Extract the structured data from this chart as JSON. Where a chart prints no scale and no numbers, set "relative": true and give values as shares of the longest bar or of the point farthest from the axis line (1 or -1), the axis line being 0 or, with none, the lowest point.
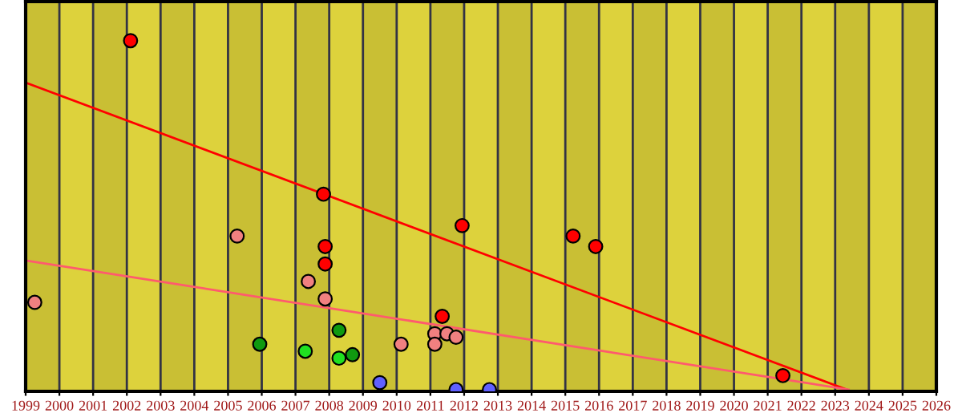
{
  "chart_data": {
    "type": "scatter",
    "relative": true,
    "xlim": [
      1999,
      2026
    ],
    "xticks": [
      1999,
      2000,
      2001,
      2002,
      2003,
      2004,
      2005,
      2006,
      2007,
      2008,
      2009,
      2010,
      2011,
      2012,
      2013,
      2014,
      2015,
      2016,
      2017,
      2018,
      2019,
      2020,
      2021,
      2022,
      2023,
      2024,
      2025,
      2026
    ],
    "grid": "x",
    "marker": "circle",
    "bands": [
      {
        "axis": "x",
        "from": 1999,
        "to": 2000,
        "color": "#c9bf34"
      },
      {
        "axis": "x",
        "from": 2001,
        "to": 2002,
        "color": "#c9bf34"
      },
      {
        "axis": "x",
        "from": 2003,
        "to": 2004,
        "color": "#c9bf34"
      },
      {
        "axis": "x",
        "from": 2005,
        "to": 2006,
        "color": "#c9bf34"
      },
      {
        "axis": "x",
        "from": 2007,
        "to": 2008,
        "color": "#c9bf34"
      },
      {
        "axis": "x",
        "from": 2009,
        "to": 2010,
        "color": "#c9bf34"
      },
      {
        "axis": "x",
        "from": 2011,
        "to": 2012,
        "color": "#c9bf34"
      },
      {
        "axis": "x",
        "from": 2013,
        "to": 2014,
        "color": "#c9bf34"
      },
      {
        "axis": "x",
        "from": 2015,
        "to": 2016,
        "color": "#c9bf34"
      },
      {
        "axis": "x",
        "from": 2017,
        "to": 2018,
        "color": "#c9bf34"
      },
      {
        "axis": "x",
        "from": 2019,
        "to": 2020,
        "color": "#c9bf34"
      },
      {
        "axis": "x",
        "from": 2021,
        "to": 2022,
        "color": "#c9bf34"
      },
      {
        "axis": "x",
        "from": 2023,
        "to": 2024,
        "color": "#c9bf34"
      },
      {
        "axis": "x",
        "from": 2025,
        "to": 2026,
        "color": "#c9bf34"
      }
    ],
    "series": [
      {
        "color": "#ff0000",
        "x": [
          2002.11,
          2007.83,
          2007.88,
          2007.88,
          2011.94,
          2015.23,
          2015.9,
          2011.35,
          2021.45
        ],
        "values": [
          1.0,
          0.56,
          0.41,
          0.36,
          0.47,
          0.44,
          0.41,
          0.21,
          0.04
        ]
      },
      {
        "color": "#f08080",
        "x": [
          1999.27,
          2005.27,
          2007.38,
          2007.88,
          2010.13,
          2011.13,
          2011.13,
          2011.49,
          2011.76
        ],
        "values": [
          0.25,
          0.44,
          0.31,
          0.26,
          0.13,
          0.16,
          0.13,
          0.16,
          0.15
        ]
      },
      {
        "color": "#109a10",
        "x": [
          2005.94,
          2008.29,
          2008.69
        ],
        "values": [
          0.13,
          0.17,
          0.1
        ]
      },
      {
        "color": "#20e020",
        "x": [
          2007.29,
          2008.29
        ],
        "values": [
          0.11,
          0.09
        ]
      },
      {
        "color": "#6060ff",
        "x": [
          2009.5,
          2011.76,
          2012.75
        ],
        "values": [
          0.02,
          0.0,
          0.0
        ]
      },
      {
        "type": "line",
        "marker": "none",
        "color": "#ff0000",
        "x": [
          1999,
          2023.34
        ],
        "values": [
          0.88,
          0.0
        ]
      },
      {
        "type": "line",
        "marker": "none",
        "color": "#ff5a6e",
        "x": [
          1999,
          2023.4
        ],
        "values": [
          0.37,
          0.0
        ]
      }
    ]
  }
}
